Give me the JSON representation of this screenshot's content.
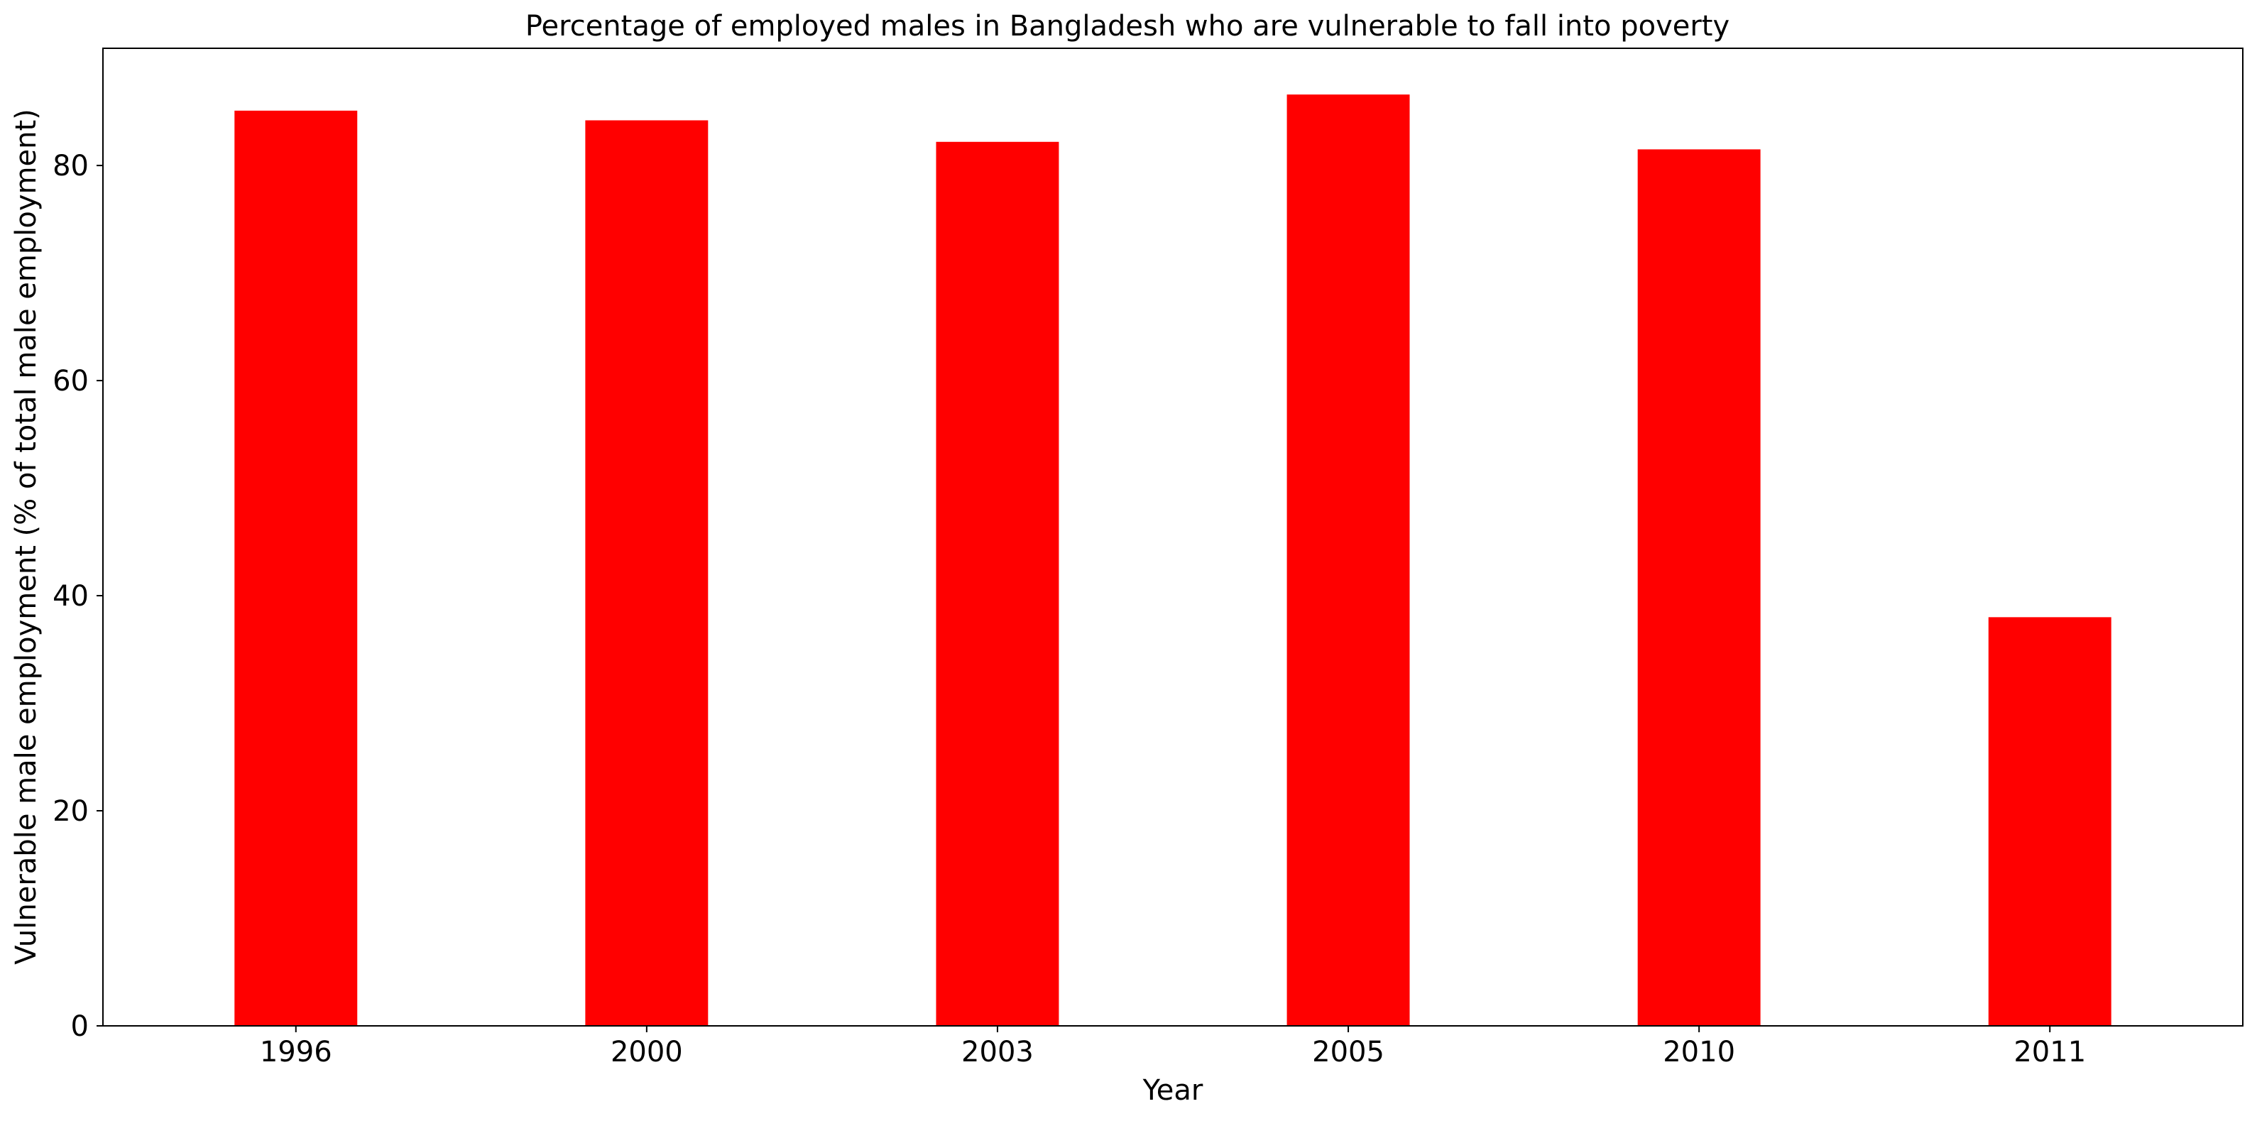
{
  "chart_data": {
    "type": "bar",
    "title": "Percentage of employed males in Bangladesh who are vulnerable to fall into poverty",
    "xlabel": "Year",
    "ylabel": "Vulnerable male employment (% of total male employment)",
    "categories": [
      "1996",
      "2000",
      "2003",
      "2005",
      "2010",
      "2011"
    ],
    "values": [
      85.1,
      84.2,
      82.2,
      86.6,
      81.5,
      38.0
    ],
    "ylim": [
      0,
      90.9
    ],
    "yticks": [
      0,
      20,
      40,
      60,
      80
    ],
    "bar_color": "#ff0000",
    "grid": false,
    "legend": "none"
  }
}
